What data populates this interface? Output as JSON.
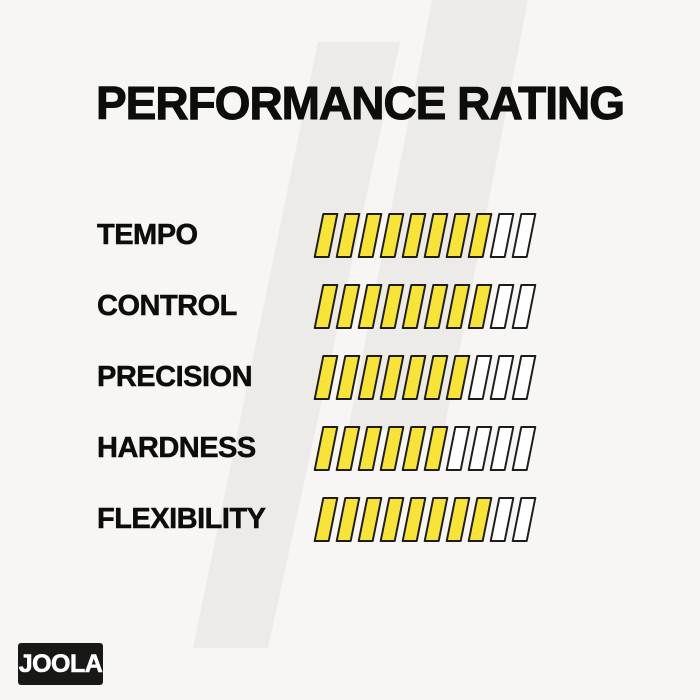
{
  "title": "PERFORMANCE RATING",
  "brand": {
    "logo_text": "JOOLA"
  },
  "colors": {
    "background": "#f7f6f4",
    "watermark": "#edebe8",
    "text": "#0d0d0b",
    "bar_filled": "#f8e437",
    "bar_empty": "#ffffff",
    "bar_stroke": "#1d1d1b",
    "logo_background": "#181816",
    "logo_text": "#ffffff"
  },
  "chart_data": {
    "type": "bar",
    "title": "PERFORMANCE RATING",
    "categories": [
      "TEMPO",
      "CONTROL",
      "PRECISION",
      "HARDNESS",
      "FLEXIBILITY"
    ],
    "values": [
      8,
      8,
      7,
      6,
      8
    ],
    "max": 10,
    "xlabel": "",
    "ylabel": "",
    "legend": "none",
    "grid": false,
    "segment_style": "skewed-parallelogram",
    "value_semantics": "filled segments out of 10"
  }
}
